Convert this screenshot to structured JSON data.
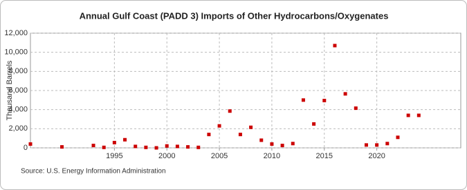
{
  "chart_data": {
    "type": "scatter",
    "title": "Annual Gulf Coast (PADD 3) Imports of Other Hydrocarbons/Oxygenates",
    "y_label": "Thousand Barrels",
    "source": "Source: U.S. Energy Information Administration",
    "color": "#cc0000",
    "x": [
      1987,
      1990,
      1993,
      1994,
      1995,
      1996,
      1997,
      1998,
      1999,
      2000,
      2001,
      2002,
      2003,
      2004,
      2005,
      2006,
      2007,
      2008,
      2009,
      2010,
      2011,
      2012,
      2013,
      2014,
      2015,
      2016,
      2017,
      2018,
      2019,
      2020,
      2021,
      2022,
      2023,
      2024
    ],
    "values": [
      400,
      100,
      250,
      50,
      550,
      850,
      150,
      50,
      0,
      200,
      150,
      100,
      50,
      1400,
      2300,
      3850,
      1400,
      2150,
      800,
      400,
      250,
      450,
      5000,
      2500,
      4950,
      10700,
      5650,
      4150,
      300,
      300,
      450,
      1100,
      3400,
      3400
    ],
    "xlim": [
      1987,
      2028
    ],
    "xticks": [
      1995,
      2000,
      2005,
      2010,
      2015,
      2020
    ],
    "ylim": [
      0,
      12000
    ],
    "yticks": [
      0,
      {
        "value": 2000,
        "label": "2,000"
      },
      {
        "value": 4000,
        "label": "4,000"
      },
      {
        "value": 6000,
        "label": "6,000"
      },
      {
        "value": 8000,
        "label": "8,000"
      },
      {
        "value": 10000,
        "label": "10,000"
      },
      {
        "value": 12000,
        "label": "12,000"
      }
    ],
    "grid": true
  }
}
